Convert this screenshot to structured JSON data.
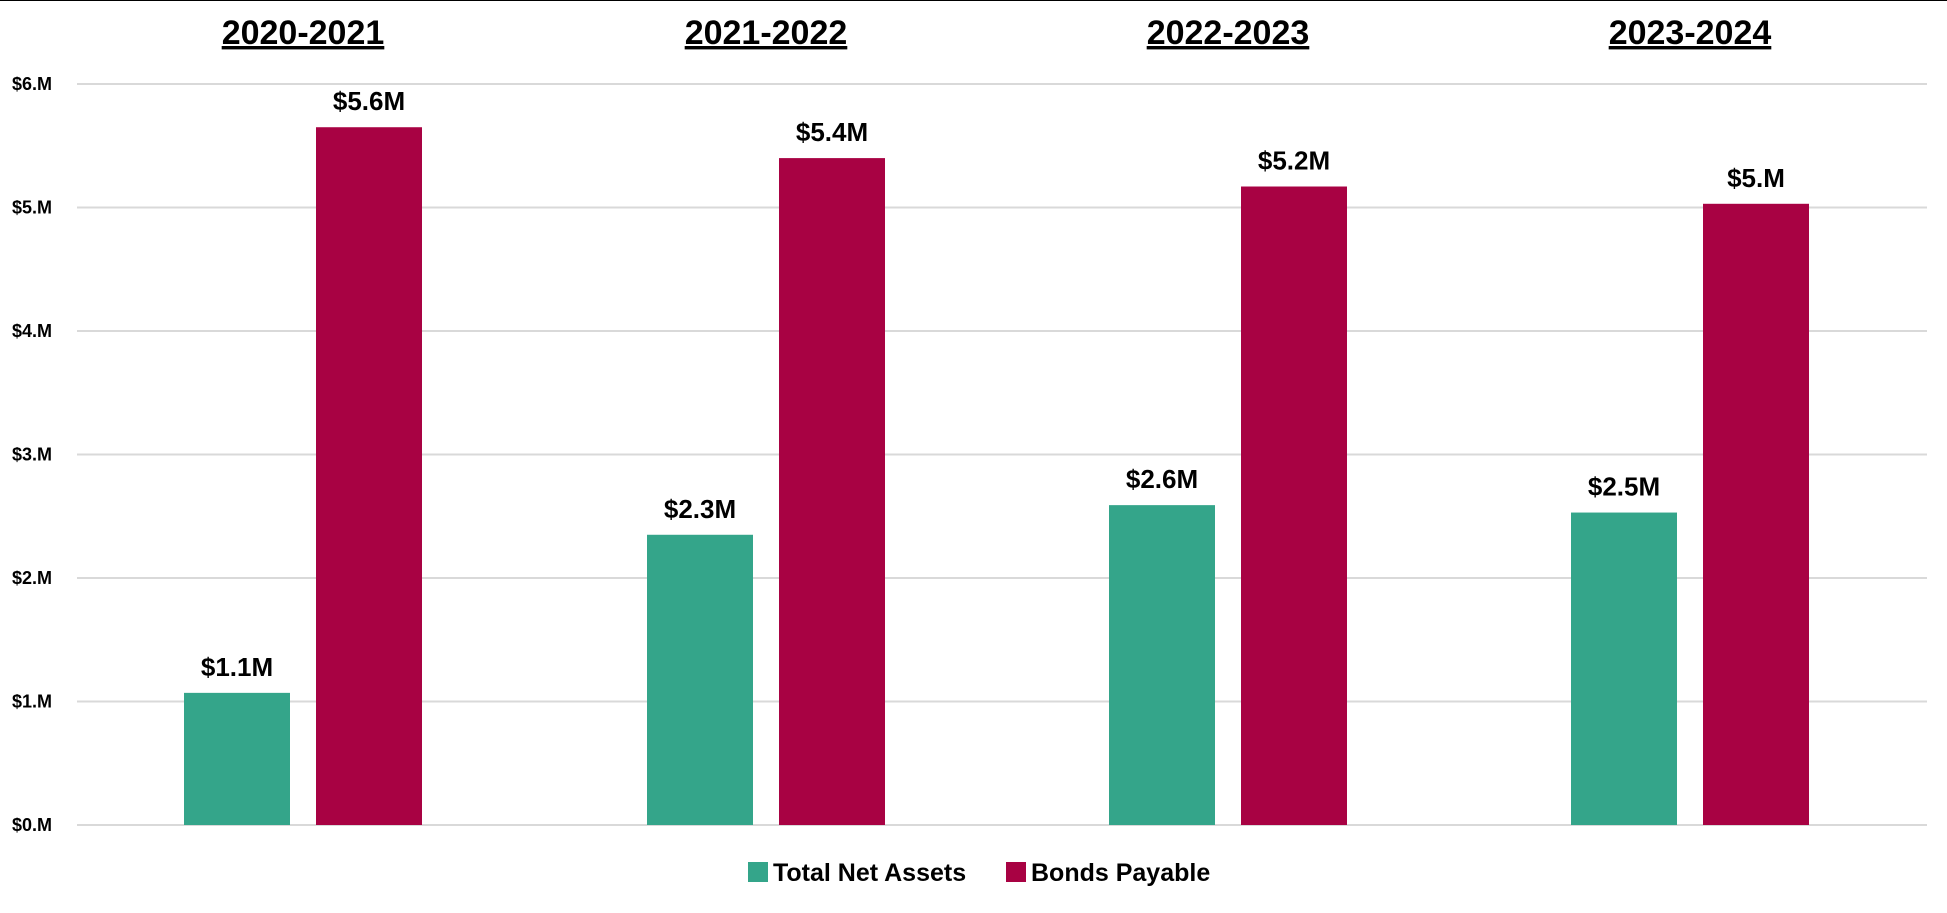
{
  "chart_data": {
    "type": "bar",
    "categories": [
      "2020-2021",
      "2021-2022",
      "2022-2023",
      "2023-2024"
    ],
    "series": [
      {
        "name": "Total Net Assets",
        "values": [
          1.07,
          2.35,
          2.59,
          2.53
        ],
        "labels": [
          "$1.1M",
          "$2.3M",
          "$2.6M",
          "$2.5M"
        ],
        "color": "#34a58a"
      },
      {
        "name": "Bonds Payable",
        "values": [
          5.65,
          5.4,
          5.17,
          5.03
        ],
        "labels": [
          "$5.6M",
          "$5.4M",
          "$5.2M",
          "$5.M"
        ],
        "color": "#a80243"
      }
    ],
    "yticks": [
      0,
      1,
      2,
      3,
      4,
      5,
      6
    ],
    "ytick_labels": [
      "$0.M",
      "$1.M",
      "$2.M",
      "$3.M",
      "$4.M",
      "$5.M",
      "$6.M"
    ],
    "ylim": [
      0,
      6
    ],
    "grid": true,
    "legend": "bottom-center",
    "category_labels_position": "top",
    "category_labels_underlined": true,
    "gridline_color": "#d9d9d9",
    "text_color": "#000000"
  }
}
